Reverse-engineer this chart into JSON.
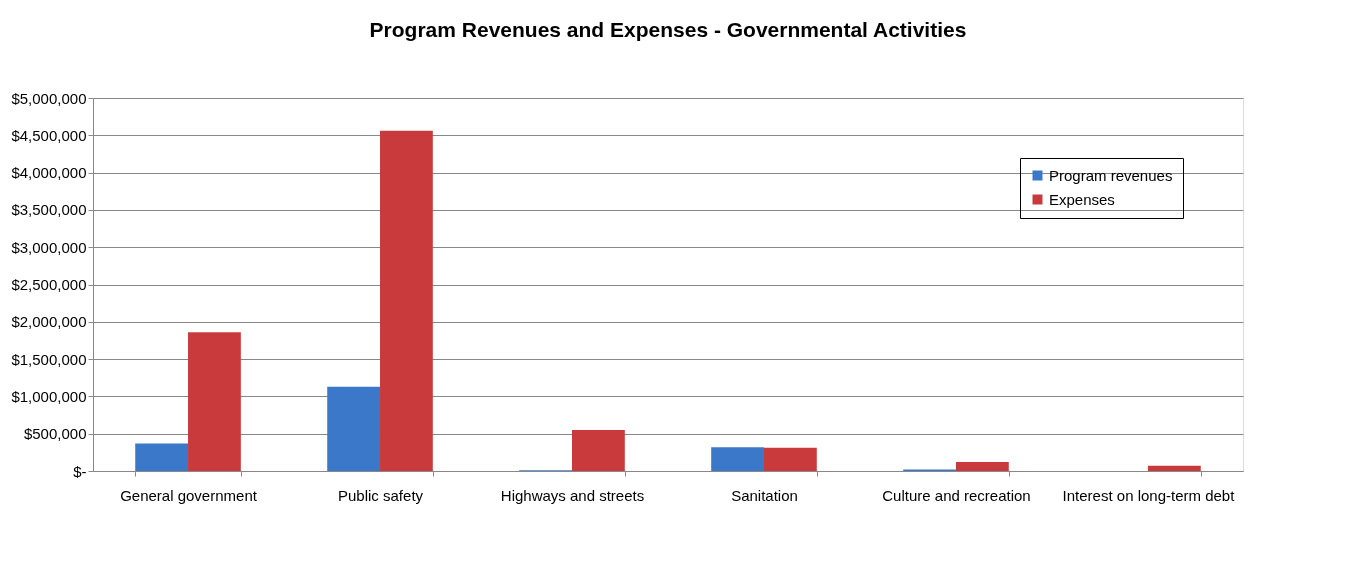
{
  "chart_data": {
    "type": "bar",
    "title": "Program Revenues and Expenses - Governmental Activities",
    "categories": [
      "General government",
      "Public safety",
      "Highways and streets",
      "Sanitation",
      "Culture and recreation",
      "Interest on long-term debt"
    ],
    "series": [
      {
        "name": "Program revenues",
        "color": "#3b78c9",
        "values": [
          370000,
          1130000,
          10000,
          320000,
          20000,
          null
        ]
      },
      {
        "name": "Expenses",
        "color": "#c93a3c",
        "values": [
          1860000,
          4560000,
          550000,
          310000,
          120000,
          70000
        ]
      }
    ],
    "ylim": [
      0,
      5000000
    ],
    "yticks": [
      {
        "value": 0,
        "label": "$-"
      },
      {
        "value": 500000,
        "label": "$500,000"
      },
      {
        "value": 1000000,
        "label": "$1,000,000"
      },
      {
        "value": 1500000,
        "label": "$1,500,000"
      },
      {
        "value": 2000000,
        "label": "$2,000,000"
      },
      {
        "value": 2500000,
        "label": "$2,500,000"
      },
      {
        "value": 3000000,
        "label": "$3,000,000"
      },
      {
        "value": 3500000,
        "label": "$3,500,000"
      },
      {
        "value": 4000000,
        "label": "$4,000,000"
      },
      {
        "value": 4500000,
        "label": "$4,500,000"
      },
      {
        "value": 5000000,
        "label": "$5,000,000"
      }
    ],
    "grid": "y",
    "legend": "top right"
  }
}
